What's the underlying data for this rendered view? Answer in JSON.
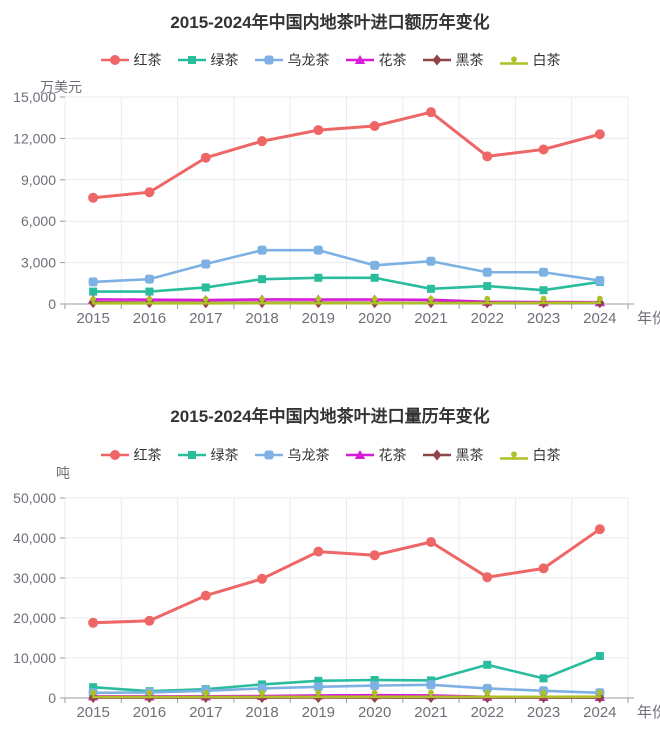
{
  "charts": [
    {
      "title": "2015-2024年中国内地茶叶进口额历年变化",
      "y_unit": "万美元",
      "x_label": "年份"
    },
    {
      "title": "2015-2024年中国内地茶叶进口量历年变化",
      "y_unit": "吨",
      "x_label": "年份"
    }
  ],
  "chart_data": [
    {
      "type": "line",
      "title": "2015-2024年中国内地茶叶进口额历年变化",
      "ylabel": "万美元",
      "xlabel": "年份",
      "categories": [
        "2015",
        "2016",
        "2017",
        "2018",
        "2019",
        "2020",
        "2021",
        "2022",
        "2023",
        "2024"
      ],
      "ylim": [
        0,
        15000
      ],
      "yticks": [
        0,
        3000,
        6000,
        9000,
        12000,
        15000
      ],
      "grid": true,
      "legend_position": "top",
      "series": [
        {
          "name": "红茶",
          "color": "#ee6666",
          "symbol": "circle",
          "values": [
            7700,
            8100,
            10600,
            11800,
            12600,
            12900,
            13900,
            10700,
            11200,
            12300
          ]
        },
        {
          "name": "绿茶",
          "color": "#29bd9e",
          "symbol": "rect",
          "values": [
            900,
            900,
            1200,
            1800,
            1900,
            1900,
            1100,
            1300,
            1000,
            1600
          ]
        },
        {
          "name": "乌龙茶",
          "color": "#7eb1e3",
          "symbol": "roundRect",
          "values": [
            1600,
            1800,
            2900,
            3900,
            3900,
            2800,
            3100,
            2300,
            2300,
            1700
          ]
        },
        {
          "name": "花茶",
          "color": "#d81bd8",
          "symbol": "triangle",
          "values": [
            330,
            310,
            290,
            330,
            320,
            320,
            300,
            160,
            140,
            130
          ]
        },
        {
          "name": "黑茶",
          "color": "#8f4545",
          "symbol": "diamond",
          "values": [
            110,
            100,
            90,
            100,
            100,
            90,
            90,
            80,
            80,
            90
          ]
        },
        {
          "name": "白茶",
          "color": "#aebf27",
          "symbol": "pin",
          "values": [
            50,
            50,
            50,
            60,
            60,
            60,
            70,
            70,
            80,
            90
          ]
        }
      ]
    },
    {
      "type": "line",
      "title": "2015-2024年中国内地茶叶进口量历年变化",
      "ylabel": "吨",
      "xlabel": "年份",
      "categories": [
        "2015",
        "2016",
        "2017",
        "2018",
        "2019",
        "2020",
        "2021",
        "2022",
        "2023",
        "2024"
      ],
      "ylim": [
        0,
        50000
      ],
      "yticks": [
        0,
        10000,
        20000,
        30000,
        40000,
        50000
      ],
      "grid": true,
      "legend_position": "top",
      "series": [
        {
          "name": "红茶",
          "color": "#ee6666",
          "symbol": "circle",
          "values": [
            18800,
            19300,
            25600,
            29800,
            36600,
            35700,
            39000,
            30200,
            32400,
            42200
          ]
        },
        {
          "name": "绿茶",
          "color": "#29bd9e",
          "symbol": "rect",
          "values": [
            2700,
            1700,
            2200,
            3400,
            4300,
            4500,
            4400,
            8300,
            4900,
            10500
          ]
        },
        {
          "name": "乌龙茶",
          "color": "#7eb1e3",
          "symbol": "roundRect",
          "values": [
            1300,
            1400,
            1800,
            2400,
            2800,
            3100,
            3300,
            2400,
            1800,
            1300
          ]
        },
        {
          "name": "花茶",
          "color": "#d81bd8",
          "symbol": "triangle",
          "values": [
            400,
            380,
            420,
            500,
            650,
            700,
            650,
            300,
            280,
            250
          ]
        },
        {
          "name": "黑茶",
          "color": "#8f4545",
          "symbol": "diamond",
          "values": [
            120,
            110,
            110,
            120,
            130,
            120,
            110,
            100,
            100,
            100
          ]
        },
        {
          "name": "白茶",
          "color": "#aebf27",
          "symbol": "pin",
          "values": [
            250,
            250,
            260,
            280,
            300,
            300,
            310,
            300,
            300,
            320
          ]
        }
      ]
    }
  ]
}
